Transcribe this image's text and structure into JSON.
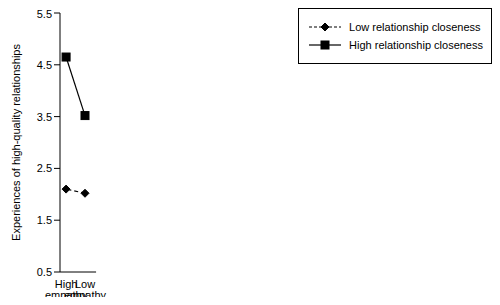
{
  "chart_data": {
    "type": "line",
    "categories": [
      "Low empathy",
      "High empathy"
    ],
    "y_label": "Experiences of high-quality relationships",
    "series": [
      {
        "name": "Low relationship closeness",
        "color": "#000000",
        "marker": "diamond",
        "line_style": "dashed",
        "values": [
          2.02,
          2.1
        ]
      },
      {
        "name": "High relationship closeness",
        "color": "#000000",
        "marker": "square",
        "line_style": "solid",
        "values": [
          3.52,
          4.65
        ]
      }
    ],
    "ylim": [
      0.5,
      5.5
    ],
    "yticks": [
      0.5,
      1.5,
      2.5,
      3.5,
      4.5,
      5.5
    ],
    "grid": false,
    "legend": "top-right"
  }
}
